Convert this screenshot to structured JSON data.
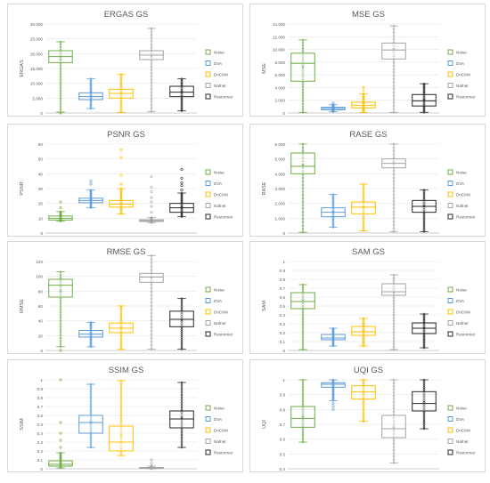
{
  "legend": [
    {
      "name": "Noise",
      "color": "#70ad47"
    },
    {
      "name": "DVA",
      "color": "#5b9bd5"
    },
    {
      "name": "DnCNN",
      "color": "#ffc000"
    },
    {
      "name": "Nafnet",
      "color": "#a5a5a5"
    },
    {
      "name": "Restormer",
      "color": "#262626"
    }
  ],
  "chart_data": [
    {
      "type": "box",
      "title": "ERGAS GS",
      "ylabel": "ERGAS",
      "ylim": [
        0,
        30000
      ],
      "yticks": [
        "0",
        "5.000",
        "10.000",
        "15.000",
        "20.000",
        "25.000",
        "30.000"
      ],
      "series": [
        {
          "name": "Noise",
          "min": 300,
          "q1": 17000,
          "median": 19000,
          "q3": 21000,
          "max": 24000,
          "mean": 18000,
          "outliers": [
            0
          ]
        },
        {
          "name": "DVA",
          "min": 1500,
          "q1": 4500,
          "median": 5500,
          "q3": 6800,
          "max": 11500,
          "mean": 5500,
          "outliers": []
        },
        {
          "name": "DnCNN",
          "min": 200,
          "q1": 5000,
          "median": 6600,
          "q3": 8000,
          "max": 13000,
          "mean": 6600,
          "outliers": []
        },
        {
          "name": "Nafnet",
          "min": 500,
          "q1": 18000,
          "median": 19500,
          "q3": 21000,
          "max": 28500,
          "mean": 19000,
          "outliers": []
        },
        {
          "name": "Restormer",
          "min": 700,
          "q1": 5500,
          "median": 7000,
          "q3": 9000,
          "max": 11500,
          "mean": 7200,
          "outliers": []
        }
      ]
    },
    {
      "type": "box",
      "title": "MSE GS",
      "ylabel": "MSE",
      "ylim": [
        0,
        14000
      ],
      "yticks": [
        "0",
        "2.000",
        "4.000",
        "6.000",
        "8.000",
        "10.000",
        "12.000",
        "14.000"
      ],
      "series": [
        {
          "name": "Noise",
          "min": 100,
          "q1": 5000,
          "median": 7800,
          "q3": 9400,
          "max": 11500,
          "mean": 7200,
          "outliers": []
        },
        {
          "name": "DVA",
          "min": 200,
          "q1": 500,
          "median": 700,
          "q3": 900,
          "max": 1300,
          "mean": 700,
          "outliers": [
            1600
          ]
        },
        {
          "name": "DnCNN",
          "min": 100,
          "q1": 800,
          "median": 1200,
          "q3": 1700,
          "max": 3000,
          "mean": 1300,
          "outliers": [
            3500,
            4000
          ]
        },
        {
          "name": "Nafnet",
          "min": 100,
          "q1": 8500,
          "median": 9900,
          "q3": 11000,
          "max": 13700,
          "mean": 10000,
          "outliers": []
        },
        {
          "name": "Restormer",
          "min": 100,
          "q1": 1100,
          "median": 1900,
          "q3": 2900,
          "max": 4600,
          "mean": 2000,
          "outliers": []
        }
      ]
    },
    {
      "type": "box",
      "title": "PSNR GS",
      "ylabel": "PSNR",
      "ylim": [
        0,
        60
      ],
      "yticks": [
        "0",
        "10",
        "20",
        "30",
        "40",
        "50",
        "60"
      ],
      "series": [
        {
          "name": "Noise",
          "min": 8,
          "q1": 8.8,
          "median": 10,
          "q3": 11.5,
          "max": 14.5,
          "mean": 10.2,
          "outliers": [
            17,
            21
          ]
        },
        {
          "name": "DVA",
          "min": 17,
          "q1": 20.5,
          "median": 22,
          "q3": 23.5,
          "max": 29,
          "mean": 22,
          "outliers": [
            33,
            35
          ]
        },
        {
          "name": "DnCNN",
          "min": 13,
          "q1": 17.5,
          "median": 19.5,
          "q3": 22,
          "max": 30,
          "mean": 19.8,
          "outliers": [
            33,
            39,
            51,
            56
          ]
        },
        {
          "name": "Nafnet",
          "min": 7,
          "q1": 7.8,
          "median": 8.3,
          "q3": 9,
          "max": 10.5,
          "mean": 8.5,
          "outliers": [
            14,
            18,
            21,
            24,
            28,
            31,
            38
          ]
        },
        {
          "name": "Restormer",
          "min": 11,
          "q1": 14,
          "median": 17,
          "q3": 20,
          "max": 27,
          "mean": 17,
          "outliers": [
            29,
            32,
            34,
            37,
            43
          ]
        }
      ]
    },
    {
      "type": "box",
      "title": "RASE GS",
      "ylabel": "RASE",
      "ylim": [
        0,
        6000
      ],
      "yticks": [
        "0",
        "1.000",
        "2.000",
        "3.000",
        "4.000",
        "5.000",
        "6.000"
      ],
      "series": [
        {
          "name": "Noise",
          "min": 50,
          "q1": 4000,
          "median": 4500,
          "q3": 5400,
          "max": 6000,
          "mean": 4600,
          "outliers": []
        },
        {
          "name": "DVA",
          "min": 400,
          "q1": 1100,
          "median": 1400,
          "q3": 1700,
          "max": 2600,
          "mean": 1400,
          "outliers": []
        },
        {
          "name": "DnCNN",
          "min": 150,
          "q1": 1300,
          "median": 1750,
          "q3": 2100,
          "max": 3300,
          "mean": 1700,
          "outliers": []
        },
        {
          "name": "Nafnet",
          "min": 100,
          "q1": 4400,
          "median": 4700,
          "q3": 5000,
          "max": 6000,
          "mean": 4700,
          "outliers": []
        },
        {
          "name": "Restormer",
          "min": 100,
          "q1": 1400,
          "median": 1800,
          "q3": 2200,
          "max": 2900,
          "mean": 1800,
          "outliers": []
        }
      ]
    },
    {
      "type": "box",
      "title": "RMSE GS",
      "ylabel": "RMSE",
      "ylim": [
        0,
        120
      ],
      "yticks": [
        "0",
        "20",
        "40",
        "60",
        "80",
        "100",
        "120"
      ],
      "series": [
        {
          "name": "Noise",
          "min": 5,
          "q1": 72,
          "median": 88,
          "q3": 96,
          "max": 106,
          "mean": 80,
          "outliers": [
            0
          ]
        },
        {
          "name": "DVA",
          "min": 5,
          "q1": 18,
          "median": 22,
          "q3": 27,
          "max": 38,
          "mean": 22,
          "outliers": []
        },
        {
          "name": "DnCNN",
          "min": 2,
          "q1": 24,
          "median": 30,
          "q3": 37,
          "max": 60,
          "mean": 30,
          "outliers": []
        },
        {
          "name": "Nafnet",
          "min": 2,
          "q1": 92,
          "median": 99,
          "q3": 104,
          "max": 128,
          "mean": 98,
          "outliers": []
        },
        {
          "name": "Restormer",
          "min": 2,
          "q1": 32,
          "median": 42,
          "q3": 53,
          "max": 70,
          "mean": 40,
          "outliers": []
        }
      ]
    },
    {
      "type": "box",
      "title": "SAM GS",
      "ylabel": "SAM",
      "ylim": [
        0,
        1
      ],
      "yticks": [
        "0",
        "0.1",
        "0.2",
        "0.3",
        "0.4",
        "0.5",
        "0.6",
        "0.7",
        "0.8",
        "0.9",
        "1"
      ],
      "series": [
        {
          "name": "Noise",
          "min": 0.01,
          "q1": 0.47,
          "median": 0.55,
          "q3": 0.65,
          "max": 0.74,
          "mean": 0.56,
          "outliers": []
        },
        {
          "name": "DVA",
          "min": 0.05,
          "q1": 0.12,
          "median": 0.14,
          "q3": 0.18,
          "max": 0.25,
          "mean": 0.15,
          "outliers": []
        },
        {
          "name": "DnCNN",
          "min": 0.05,
          "q1": 0.17,
          "median": 0.21,
          "q3": 0.27,
          "max": 0.36,
          "mean": 0.22,
          "outliers": []
        },
        {
          "name": "Nafnet",
          "min": 0.01,
          "q1": 0.62,
          "median": 0.66,
          "q3": 0.75,
          "max": 0.85,
          "mean": 0.65,
          "outliers": []
        },
        {
          "name": "Restormer",
          "min": 0.03,
          "q1": 0.19,
          "median": 0.25,
          "q3": 0.31,
          "max": 0.41,
          "mean": 0.25,
          "outliers": []
        }
      ]
    },
    {
      "type": "box",
      "title": "SSIM GS",
      "ylabel": "SSIM",
      "ylim": [
        0,
        1
      ],
      "yticks": [
        "0",
        "0.1",
        "0.2",
        "0.3",
        "0.4",
        "0.5",
        "0.6",
        "0.7",
        "0.8",
        "0.9",
        "1"
      ],
      "series": [
        {
          "name": "Noise",
          "min": 0.01,
          "q1": 0.03,
          "median": 0.05,
          "q3": 0.09,
          "max": 0.18,
          "mean": 0.07,
          "outliers": [
            0.24,
            0.32,
            0.4,
            0.52,
            1.0
          ]
        },
        {
          "name": "DVA",
          "min": 0.24,
          "q1": 0.4,
          "median": 0.52,
          "q3": 0.6,
          "max": 0.95,
          "mean": 0.52,
          "outliers": []
        },
        {
          "name": "DnCNN",
          "min": 0.15,
          "q1": 0.2,
          "median": 0.3,
          "q3": 0.48,
          "max": 0.99,
          "mean": 0.37,
          "outliers": []
        },
        {
          "name": "Nafnet",
          "min": 0.0,
          "q1": 0.005,
          "median": 0.01,
          "q3": 0.015,
          "max": 0.03,
          "mean": 0.01,
          "outliers": [
            0.06,
            0.1
          ]
        },
        {
          "name": "Restormer",
          "min": 0.24,
          "q1": 0.46,
          "median": 0.56,
          "q3": 0.65,
          "max": 0.97,
          "mean": 0.57,
          "outliers": []
        }
      ]
    },
    {
      "type": "box",
      "title": "UQI GS",
      "ylabel": "UQI",
      "ylim": [
        0.4,
        1
      ],
      "yticks": [
        "0.4",
        "0.5",
        "0.6",
        "0.7",
        "0.8",
        "0.9",
        "1"
      ],
      "series": [
        {
          "name": "Noise",
          "min": 0.58,
          "q1": 0.68,
          "median": 0.74,
          "q3": 0.82,
          "max": 1.0,
          "mean": 0.75,
          "outliers": []
        },
        {
          "name": "DVA",
          "min": 0.86,
          "q1": 0.95,
          "median": 0.97,
          "q3": 0.98,
          "max": 1.0,
          "mean": 0.96,
          "outliers": [
            0.8,
            0.82,
            0.84
          ]
        },
        {
          "name": "DnCNN",
          "min": 0.72,
          "q1": 0.87,
          "median": 0.92,
          "q3": 0.96,
          "max": 1.0,
          "mean": 0.91,
          "outliers": []
        },
        {
          "name": "Nafnet",
          "min": 0.44,
          "q1": 0.61,
          "median": 0.67,
          "q3": 0.76,
          "max": 1.0,
          "mean": 0.68,
          "outliers": []
        },
        {
          "name": "Restormer",
          "min": 0.67,
          "q1": 0.79,
          "median": 0.84,
          "q3": 0.92,
          "max": 1.0,
          "mean": 0.85,
          "outliers": []
        }
      ]
    }
  ]
}
